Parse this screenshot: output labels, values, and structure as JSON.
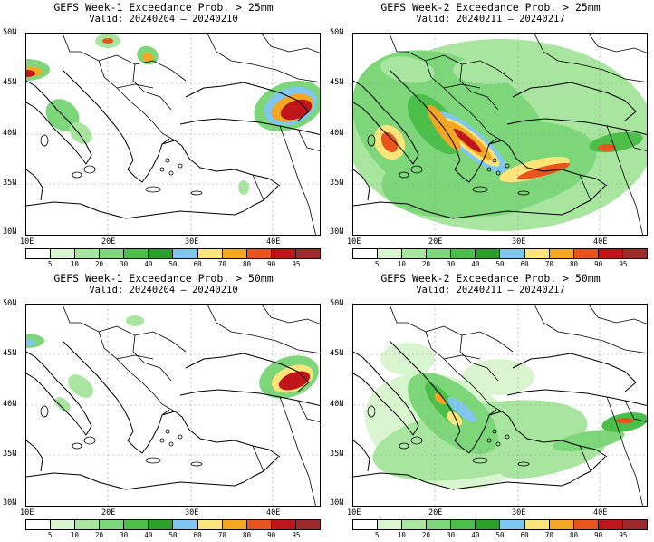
{
  "panels": [
    {
      "title": "GEFS Week-1 Exceedance Prob. > 25mm",
      "valid": "Valid: 20240204 – 20240210"
    },
    {
      "title": "GEFS Week-2 Exceedance Prob. > 25mm",
      "valid": "Valid: 20240211 – 20240217"
    },
    {
      "title": "GEFS Week-1 Exceedance Prob. > 50mm",
      "valid": "Valid: 20240204 – 20240210"
    },
    {
      "title": "GEFS Week-2 Exceedance Prob. > 50mm",
      "valid": "Valid: 20240211 – 20240217"
    }
  ],
  "lat_labels": [
    "50N",
    "45N",
    "40N",
    "35N",
    "30N"
  ],
  "lon_labels": [
    "10E",
    "20E",
    "30E",
    "40E"
  ],
  "colorbar": {
    "labels": [
      "5",
      "10",
      "20",
      "30",
      "40",
      "50",
      "60",
      "70",
      "80",
      "90",
      "95"
    ],
    "colors": [
      "#ffffff",
      "#d9f5d0",
      "#a8e6a0",
      "#7ed67a",
      "#4cbf4a",
      "#2aa02a",
      "#7fc7f0",
      "#fbe57a",
      "#f5a623",
      "#e8541c",
      "#c0151a",
      "#9c2a2a"
    ]
  }
}
